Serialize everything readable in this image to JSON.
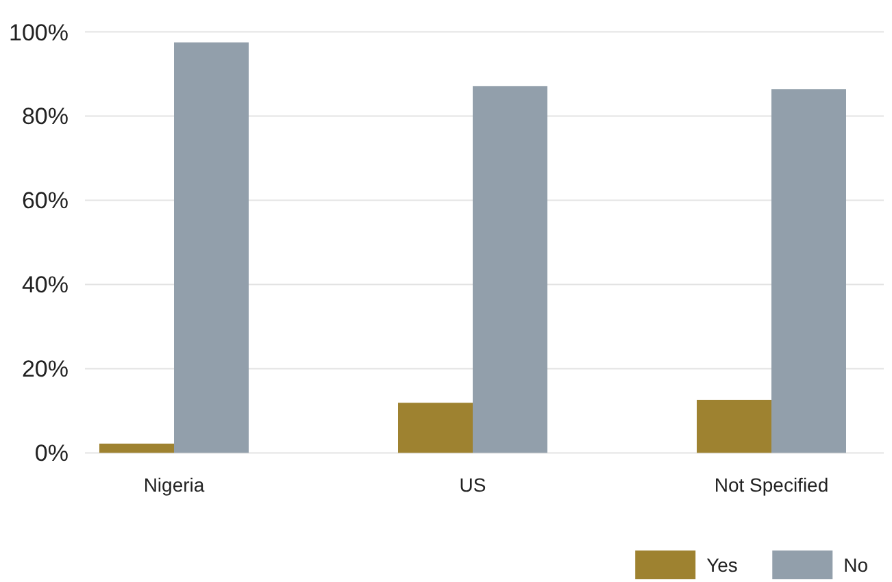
{
  "chart_data": {
    "type": "bar",
    "categories": [
      "Nigeria",
      "US",
      "Not Specified"
    ],
    "series": [
      {
        "name": "Yes",
        "color": "#9e8230",
        "values": [
          2.2,
          11.9,
          12.6
        ]
      },
      {
        "name": "No",
        "color": "#929fab",
        "values": [
          97.5,
          87.1,
          86.4
        ]
      }
    ],
    "ylim": [
      0,
      100
    ],
    "yticks": [
      {
        "value": 0,
        "label": "0%"
      },
      {
        "value": 20,
        "label": "20%"
      },
      {
        "value": 40,
        "label": "40%"
      },
      {
        "value": 60,
        "label": "60%"
      },
      {
        "value": 80,
        "label": "80%"
      },
      {
        "value": 100,
        "label": "100%"
      }
    ],
    "grid": "y",
    "legend": "bottom right"
  }
}
